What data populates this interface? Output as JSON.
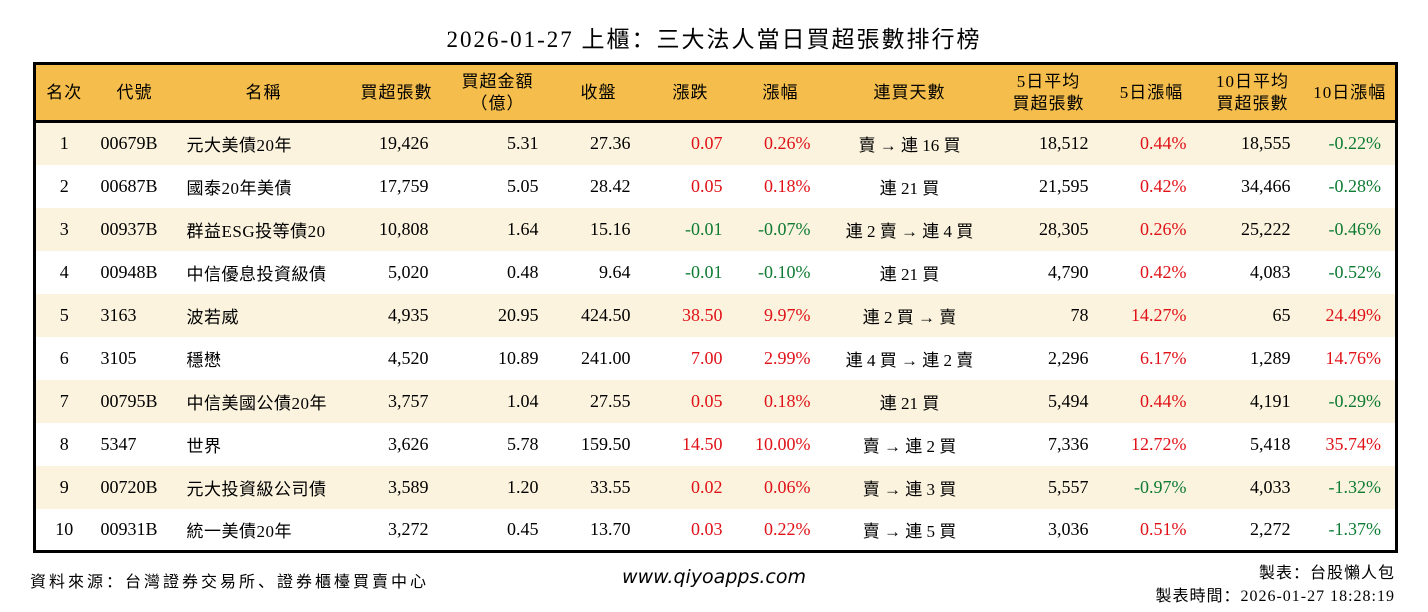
{
  "title": "2026-01-27 上櫃：三大法人當日買超張數排行榜",
  "colors": {
    "header_bg": "#F5BE4C",
    "stripe_bg": "#FBF3DE",
    "up": "#E01218",
    "down": "#0E7B33"
  },
  "chart_data": {
    "type": "table",
    "title": "2026-01-27 上櫃：三大法人當日買超張數排行榜",
    "columns": [
      {
        "key": "rank",
        "label": "名次"
      },
      {
        "key": "code",
        "label": "代號"
      },
      {
        "key": "name",
        "label": "名稱"
      },
      {
        "key": "net_buy",
        "label": "買超張數"
      },
      {
        "key": "amount",
        "label": "買超金額\n（億）"
      },
      {
        "key": "close",
        "label": "收盤"
      },
      {
        "key": "change",
        "label": "漲跌"
      },
      {
        "key": "change_pct",
        "label": "漲幅"
      },
      {
        "key": "streak",
        "label": "連買天數"
      },
      {
        "key": "avg5",
        "label": "5日平均\n買超張數"
      },
      {
        "key": "pct5",
        "label": "5日漲幅"
      },
      {
        "key": "avg10",
        "label": "10日平均\n買超張數"
      },
      {
        "key": "pct10",
        "label": "10日漲幅"
      }
    ],
    "rows": [
      {
        "rank": "1",
        "code": "00679B",
        "name": "元大美債20年",
        "net_buy": "19,426",
        "amount": "5.31",
        "close": "27.36",
        "change": "0.07",
        "change_pct": "0.26%",
        "streak": "賣 → 連 16 買",
        "avg5": "18,512",
        "pct5": "0.44%",
        "avg10": "18,555",
        "pct10": "-0.22%",
        "trend": "up",
        "trend5": "up",
        "trend10": "down"
      },
      {
        "rank": "2",
        "code": "00687B",
        "name": "國泰20年美債",
        "net_buy": "17,759",
        "amount": "5.05",
        "close": "28.42",
        "change": "0.05",
        "change_pct": "0.18%",
        "streak": "連 21 買",
        "avg5": "21,595",
        "pct5": "0.42%",
        "avg10": "34,466",
        "pct10": "-0.28%",
        "trend": "up",
        "trend5": "up",
        "trend10": "down"
      },
      {
        "rank": "3",
        "code": "00937B",
        "name": "群益ESG投等債20",
        "net_buy": "10,808",
        "amount": "1.64",
        "close": "15.16",
        "change": "-0.01",
        "change_pct": "-0.07%",
        "streak": "連 2 賣 → 連 4 買",
        "avg5": "28,305",
        "pct5": "0.26%",
        "avg10": "25,222",
        "pct10": "-0.46%",
        "trend": "down",
        "trend5": "up",
        "trend10": "down"
      },
      {
        "rank": "4",
        "code": "00948B",
        "name": "中信優息投資級債",
        "net_buy": "5,020",
        "amount": "0.48",
        "close": "9.64",
        "change": "-0.01",
        "change_pct": "-0.10%",
        "streak": "連 21 買",
        "avg5": "4,790",
        "pct5": "0.42%",
        "avg10": "4,083",
        "pct10": "-0.52%",
        "trend": "down",
        "trend5": "up",
        "trend10": "down"
      },
      {
        "rank": "5",
        "code": "3163",
        "name": "波若威",
        "net_buy": "4,935",
        "amount": "20.95",
        "close": "424.50",
        "change": "38.50",
        "change_pct": "9.97%",
        "streak": "連 2 買 → 賣",
        "avg5": "78",
        "pct5": "14.27%",
        "avg10": "65",
        "pct10": "24.49%",
        "trend": "up",
        "trend5": "up",
        "trend10": "up"
      },
      {
        "rank": "6",
        "code": "3105",
        "name": "穩懋",
        "net_buy": "4,520",
        "amount": "10.89",
        "close": "241.00",
        "change": "7.00",
        "change_pct": "2.99%",
        "streak": "連 4 買 → 連 2 賣",
        "avg5": "2,296",
        "pct5": "6.17%",
        "avg10": "1,289",
        "pct10": "14.76%",
        "trend": "up",
        "trend5": "up",
        "trend10": "up"
      },
      {
        "rank": "7",
        "code": "00795B",
        "name": "中信美國公債20年",
        "net_buy": "3,757",
        "amount": "1.04",
        "close": "27.55",
        "change": "0.05",
        "change_pct": "0.18%",
        "streak": "連 21 買",
        "avg5": "5,494",
        "pct5": "0.44%",
        "avg10": "4,191",
        "pct10": "-0.29%",
        "trend": "up",
        "trend5": "up",
        "trend10": "down"
      },
      {
        "rank": "8",
        "code": "5347",
        "name": "世界",
        "net_buy": "3,626",
        "amount": "5.78",
        "close": "159.50",
        "change": "14.50",
        "change_pct": "10.00%",
        "streak": "賣 → 連 2 買",
        "avg5": "7,336",
        "pct5": "12.72%",
        "avg10": "5,418",
        "pct10": "35.74%",
        "trend": "up",
        "trend5": "up",
        "trend10": "up"
      },
      {
        "rank": "9",
        "code": "00720B",
        "name": "元大投資級公司債",
        "net_buy": "3,589",
        "amount": "1.20",
        "close": "33.55",
        "change": "0.02",
        "change_pct": "0.06%",
        "streak": "賣 → 連 3 買",
        "avg5": "5,557",
        "pct5": "-0.97%",
        "avg10": "4,033",
        "pct10": "-1.32%",
        "trend": "up",
        "trend5": "down",
        "trend10": "down"
      },
      {
        "rank": "10",
        "code": "00931B",
        "name": "統一美債20年",
        "net_buy": "3,272",
        "amount": "0.45",
        "close": "13.70",
        "change": "0.03",
        "change_pct": "0.22%",
        "streak": "賣 → 連 5 買",
        "avg5": "3,036",
        "pct5": "0.51%",
        "avg10": "2,272",
        "pct10": "-1.37%",
        "trend": "up",
        "trend5": "up",
        "trend10": "down"
      }
    ]
  },
  "footer": {
    "source": "資料來源：台灣證券交易所、證券櫃檯買賣中心",
    "website": "www.qiyoapps.com",
    "maker": "製表：台股懶人包",
    "made_time": "製表時間：2026-01-27 18:28:19"
  }
}
